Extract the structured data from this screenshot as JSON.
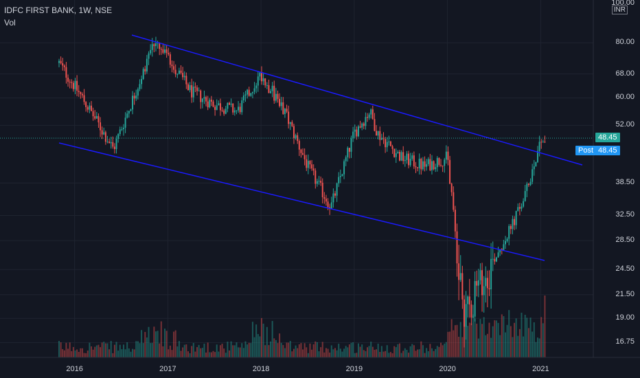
{
  "header": {
    "symbol": "IDFC FIRST BANK, 1W, NSE",
    "volume_label": "Vol"
  },
  "price_axis": {
    "currency": "INR",
    "top_label": "100.00",
    "ticks": [
      "80.00",
      "68.00",
      "60.00",
      "52.00",
      "38.50",
      "32.50",
      "28.50",
      "24.50",
      "21.50",
      "19.00",
      "16.75"
    ]
  },
  "last_price": {
    "value": "48.45",
    "post_label": "Post",
    "post_value": "48.45"
  },
  "time_axis": {
    "ticks": [
      "2016",
      "2017",
      "2018",
      "2019",
      "2020",
      "2021"
    ]
  },
  "colors": {
    "background": "#131722",
    "up": "#26a69a",
    "down": "#ef5350",
    "trendline": "#1a1aff",
    "price_tag": "#26a69a",
    "post_tag": "#2196f3",
    "grid": "#1f2430"
  },
  "chart_data": {
    "type": "candlestick",
    "title": "IDFC FIRST BANK, 1W, NSE",
    "y_scale": "log",
    "y_ticks": [
      16.75,
      19.0,
      21.5,
      24.5,
      28.5,
      32.5,
      38.5,
      52.0,
      60.0,
      68.0,
      80.0,
      100.0
    ],
    "x_ticks": [
      "2016",
      "2017",
      "2018",
      "2019",
      "2020",
      "2021"
    ],
    "grid": true,
    "last_price": 48.45,
    "series": [
      {
        "type": "line",
        "x": [
          "2015-11",
          "2016-02",
          "2016-06",
          "2016-10",
          "2016-11",
          "2017-01",
          "2017-04",
          "2017-07",
          "2017-10",
          "2018-01",
          "2018-04",
          "2018-07",
          "2018-10",
          "2019-01",
          "2019-03",
          "2019-04",
          "2019-07",
          "2019-10",
          "2020-01",
          "2020-03",
          "2020-05",
          "2020-07",
          "2020-09",
          "2020-11",
          "2021-01"
        ],
        "y": [
          72,
          60,
          46,
          70,
          80,
          74,
          62,
          58,
          56,
          68,
          56,
          42,
          34,
          50,
          56,
          50,
          44,
          42,
          44,
          20,
          22,
          26,
          30,
          36,
          48.45
        ]
      },
      {
        "type": "trendline",
        "points": [
          [
            "2016-09",
            82
          ],
          [
            "2021-04",
            42.5
          ]
        ]
      },
      {
        "type": "trendline",
        "points": [
          [
            "2015-09",
            48
          ],
          [
            "2021-01",
            25.5
          ]
        ]
      }
    ]
  }
}
